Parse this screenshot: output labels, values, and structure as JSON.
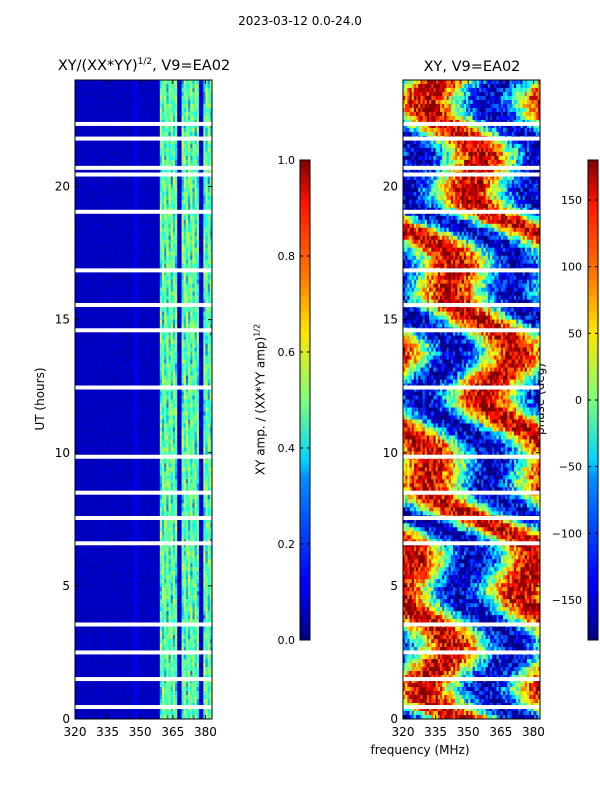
{
  "page": {
    "suptitle": "2023-03-12 0.0-24.0",
    "xlabel": "frequency (MHz)"
  },
  "colormap": "jet",
  "chart_data": [
    {
      "type": "heatmap",
      "title": "XY/(XX*YY)^1/2, V9=EA02",
      "title_main": "XY/(XX*YY)",
      "title_exp": "1/2",
      "title_rest": ", V9=EA02",
      "xlabel": "",
      "ylabel": "UT (hours)",
      "xlim": [
        320,
        383
      ],
      "ylim": [
        0,
        24
      ],
      "xticks": [
        320,
        335,
        350,
        365,
        380
      ],
      "xtick_labels": [
        "320",
        "335",
        "350",
        "365",
        "380"
      ],
      "yticks": [
        0,
        5,
        10,
        15,
        20
      ],
      "ytick_labels": [
        "0",
        "5",
        "10",
        "15",
        "20"
      ],
      "description": "Low amplitude (~0.05) below 359 MHz, higher amplitude (0.2-0.6) above 360 MHz",
      "gap_hours": [
        0.45,
        1.5,
        2.5,
        3.55,
        6.6,
        7.55,
        8.5,
        9.85,
        12.45,
        14.6,
        15.55,
        16.85,
        19.05,
        20.45,
        20.7,
        21.8,
        22.35
      ],
      "colorbar": {
        "label": "XY amp. / (XX*YY amp)^1/2",
        "label_main": "XY amp. / (XX*YY amp)",
        "label_exp": "1/2",
        "range": [
          0.0,
          1.0
        ],
        "ticks": [
          0.0,
          0.2,
          0.4,
          0.6,
          0.8,
          1.0
        ],
        "tick_labels": [
          "0.0",
          "0.2",
          "0.4",
          "0.6",
          "0.8",
          "1.0"
        ]
      }
    },
    {
      "type": "heatmap",
      "title": "XY, V9=EA02",
      "xlabel": "frequency (MHz)",
      "ylabel": "",
      "xlim": [
        320,
        383
      ],
      "ylim": [
        0,
        24
      ],
      "xticks": [
        320,
        335,
        350,
        365,
        380
      ],
      "xtick_labels": [
        "320",
        "335",
        "350",
        "365",
        "380"
      ],
      "yticks": [
        0,
        5,
        10,
        15,
        20
      ],
      "ytick_labels": [
        "0",
        "5",
        "10",
        "15",
        "20"
      ],
      "description": "XY phase varies with time and frequency between -180 and 180 degrees",
      "gap_hours": [
        0.45,
        1.5,
        2.5,
        3.55,
        6.6,
        7.55,
        8.5,
        9.85,
        12.45,
        14.6,
        15.55,
        16.85,
        19.05,
        20.45,
        20.7,
        21.8,
        22.35
      ],
      "colorbar": {
        "label": "phase (deg)",
        "range": [
          -180,
          180
        ],
        "ticks": [
          -150,
          -100,
          -50,
          0,
          50,
          100,
          150
        ],
        "tick_labels": [
          "−150",
          "−100",
          "−50",
          "0",
          "50",
          "100",
          "150"
        ]
      }
    }
  ]
}
